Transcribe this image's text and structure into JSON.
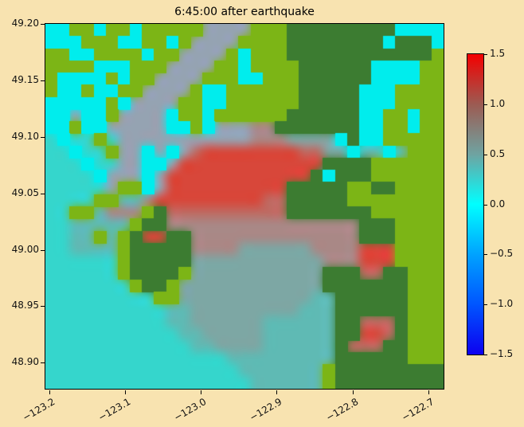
{
  "figure": {
    "background": "#f8e3b0"
  },
  "chart_data": {
    "type": "heatmap",
    "title": "6:45:00 after earthquake",
    "xlabel": "",
    "ylabel": "",
    "xlim": [
      -123.205,
      -122.68
    ],
    "ylim": [
      48.877,
      49.2
    ],
    "grid_on": false,
    "x_ticks": {
      "values": [
        -123.2,
        -123.1,
        -123.0,
        -122.9,
        -122.8,
        -122.7
      ],
      "labels": [
        "−123.2",
        "−123.1",
        "−123.0",
        "−122.9",
        "−122.8",
        "−122.7"
      ]
    },
    "y_ticks": {
      "values": [
        49.2,
        49.15,
        49.1,
        49.05,
        49.0,
        48.95,
        48.9
      ],
      "labels": [
        "49.20",
        "49.15",
        "49.10",
        "49.05",
        "49.00",
        "48.95",
        "48.90"
      ]
    },
    "colorbar": {
      "vmin": -1.5,
      "vmax": 1.5,
      "tick_values": [
        1.5,
        1.0,
        0.5,
        0.0,
        -0.5,
        -1.0,
        -1.5
      ],
      "tick_labels": [
        "1.5",
        "1.0",
        "0.5",
        "0.0",
        "−0.5",
        "−1.0",
        "−1.5"
      ],
      "gradient_stops": [
        [
          "0%",
          "#f40000"
        ],
        [
          "16.7%",
          "#9c5b52"
        ],
        [
          "33.3%",
          "#6fa3a1"
        ],
        [
          "50%",
          "#00ffff"
        ],
        [
          "66.7%",
          "#00a2ff"
        ],
        [
          "83.3%",
          "#0055ff"
        ],
        [
          "100%",
          "#0d00ef"
        ]
      ]
    },
    "grid": {
      "cols": 33,
      "rows": 30,
      "palette": {
        "O": "#7cb516",
        "D": "#3c7c31",
        "C": "#00eded",
        "W": "#35d6cc",
        "T": "#5fbab4",
        "G": "#7da7a4",
        "g": "#95a3b2",
        "p": "#a98886",
        "P": "#bf6a62",
        "R": "#d8473a"
      },
      "crisp_codes": [
        "O",
        "D",
        "C"
      ],
      "cells": [
        "CCOOCOOCOOOOOggggOOODDDDDDDDDCCCC",
        "CCCOOOCCOOCOggggOOOODDDDDDDDCDDDC",
        "OOCCOOOOCOOggggOCOOODDDDDDDDDDDDO",
        "OOOOCCCOOOggggOOCOOOODDDDDDCCCCOO",
        "OCCCCOCOOggggOOOCCOOODDDDDDCCCCOO",
        "OCCOCCOOggggOCCOOOOOODDDDDCCCOOOO",
        "CCCCCOCggggOOCCOOOOOODDDDDCCCOOOO",
        "CCgCCOggggCOOCOOOOOODDDDDDCCOOCOO",
        "CCOCCgggggCCOCgggppDDDDDDDCCOOCOO",
        "WCWWOWgggggggggggpppGGGGCDCCOOOOO",
        "WWCWWOggCgCgPRRRRRRRRPPGGCTTCTOOO",
        "WWWCWWggCCgRRRRRRRRRRRRDDDDOOOOOO",
        "WWWWCgggCgRRRRRRRRRRRRDCDDDOOOOOO",
        "WWWWWgOOCgRRRRRRRRRRDDDDDOODDOOOO",
        "WWWWOOTTpRRRRRRRRRPPDDDDDOOOOOOOO",
        "WWOOTpppODPPPPPPPPPPDDDDDDDOOOOOO",
        "WWTTTTTODDppppppppppppppppDDDOOOO",
        "WWTTOTODRRDDppppppppppppppDDDOOOO",
        "WWTTTTODDDDDppppGGGGGGppppRRROOOO",
        "WWWWWWODDDDDGGGGGGGGGGGpppRRROOOO",
        "WWWWWWODDDDOGGGGGGGGGGGDDDPPDDOOO",
        "WWWWWWWODDOGGGGGGGGGGGGDDDDDDDOOO",
        "WWWWWWWWWOOGGGGGGGGGGGTTDDDDDDOOO",
        "WWWWWWWWWWTTGGGGGGGGGTTTDDDDDDOOO",
        "WWWWWWWWWWTTGGGGGGTTTTTTDDPPPDOOO",
        "WWWWWWWWWWWTTGGGGGTTTTTTDDRRPDOOO",
        "WWWWWWWWWWWWTTGGGGTTTTTTDPPPDDOOO",
        "WWWWWWWWWWWWWWWTTTTTTTTTDDDDDDOOO",
        "WWWWWWWWWWWWWWWWTTTTTTTODDDDDDDDD",
        "WWWWWWWWWWWWWWWWWTTTTTTODDDDDDDDD"
      ]
    }
  }
}
